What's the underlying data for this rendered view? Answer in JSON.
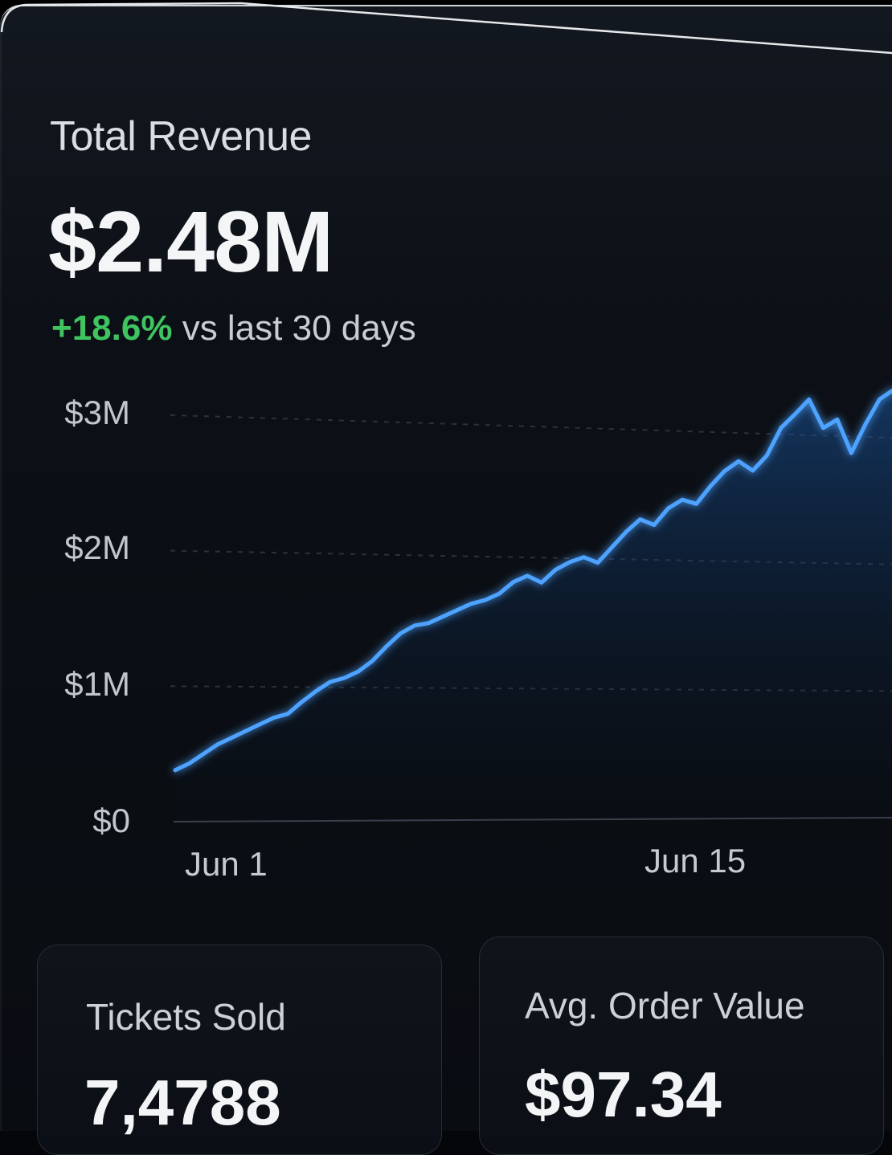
{
  "revenue_card": {
    "title": "Total Revenue",
    "value": "$2.48M",
    "change": "+18.6%",
    "change_suffix": "vs last 30 days"
  },
  "chart_data": {
    "type": "area",
    "y_ticks": [
      "$3M",
      "$2M",
      "$1M",
      "$0"
    ],
    "x_ticks": [
      "Jun 1",
      "Jun 15"
    ],
    "ylim": [
      0,
      3000000
    ],
    "grid": true,
    "line_color": "#4da3ff",
    "values": [
      0.38,
      0.43,
      0.5,
      0.57,
      0.62,
      0.67,
      0.72,
      0.77,
      0.8,
      0.89,
      0.97,
      1.04,
      1.07,
      1.12,
      1.2,
      1.31,
      1.41,
      1.47,
      1.49,
      1.54,
      1.59,
      1.64,
      1.67,
      1.72,
      1.81,
      1.86,
      1.81,
      1.91,
      1.97,
      2.01,
      1.97,
      2.09,
      2.21,
      2.31,
      2.27,
      2.4,
      2.47,
      2.44,
      2.58,
      2.7,
      2.78,
      2.71,
      2.83,
      3.05,
      3.16,
      3.28,
      3.06,
      3.13,
      2.87,
      3.1,
      3.3,
      3.38
    ]
  },
  "stats": [
    {
      "label": "Tickets Sold",
      "value": "7,4788"
    },
    {
      "label": "Avg. Order Value",
      "value": "$97.34"
    }
  ],
  "colors": {
    "accent": "#4da3ff",
    "positive": "#3fc460",
    "background": "#090c11"
  }
}
